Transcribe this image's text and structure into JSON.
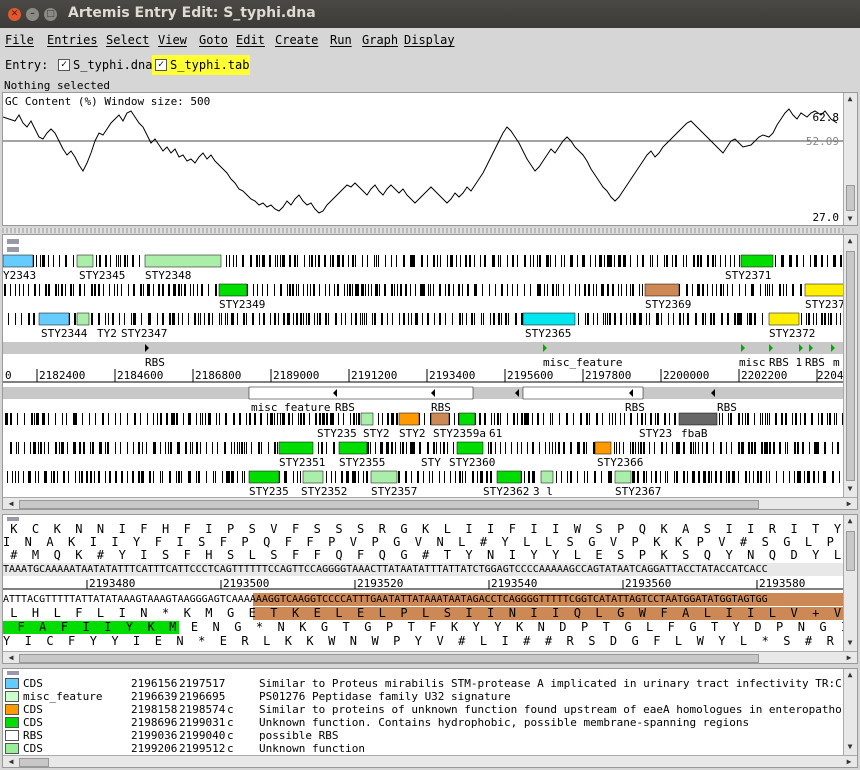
{
  "window": {
    "title": "Artemis Entry Edit: S_typhi.dna"
  },
  "menu": [
    "File",
    "Entries",
    "Select",
    "View",
    "Goto",
    "Edit",
    "Create",
    "Run",
    "Graph",
    "Display"
  ],
  "entries": {
    "label": "Entry:",
    "items": [
      {
        "name": "S_typhi.dna",
        "checked": true,
        "highlighted": false
      },
      {
        "name": "S_typhi.tab",
        "checked": true,
        "highlighted": true
      }
    ]
  },
  "status": {
    "selection": "Nothing selected"
  },
  "gc_plot": {
    "label": "GC Content (%)  Window size: 500",
    "max": "62.8",
    "avg": "52.09",
    "min": "27.0"
  },
  "feature_view": {
    "ticks": [
      "2182400",
      "2184600",
      "2186800",
      "2189000",
      "2191200",
      "2193400",
      "2195600",
      "2197800",
      "2200000",
      "2202200",
      "2204"
    ],
    "tick0": "0",
    "labels": {
      "f1": [
        "Y2343",
        "STY2345",
        "STY2348",
        "STY2371"
      ],
      "f2": [
        "STY2349",
        "STY2369",
        "STY237"
      ],
      "f3": [
        "STY2344",
        "TY2",
        "STY2347",
        "STY2365",
        "STY2372"
      ],
      "rbs_top": [
        "RBS",
        "misc_feature",
        "misc",
        "RBS 1",
        "RBS",
        "m"
      ],
      "rbs_bottom": [
        "misc_feature",
        "RBS",
        "RBS",
        "RBS",
        "RBS"
      ],
      "r1": [
        "STY235",
        "STY2",
        "STY2",
        "STY2359a",
        "61",
        "STY23",
        "fbaB"
      ],
      "r2": [
        "STY2351",
        "STY2355",
        "STY",
        "STY2360",
        "STY2366"
      ],
      "r3": [
        "STY235",
        "STY2352",
        "STY2357",
        "STY2362",
        "3 l",
        "STY2367"
      ]
    }
  },
  "sequence": {
    "f1": " K  C  K  N  N  I  F  H  F  I  P  S  V  F  S  S  S  R  G  K  L  I  I  F  I  I  W  S  P  Q  K  A  S  I  I  R  I  T  Y  I  T",
    "f2": "I  N  A  K  I  I  Y  F  I  S  F  P  Q  F  F  P  V  P  G  V  N  L  #  Y  L  L  S  G  V  P  K  K  P  V  #  S  G  L  P  I  P  S",
    "f3": " #  M  Q  K  #  Y  I  S  F  H  S  L  S  F  F  Q  F  Q  G  #  T  Y  N  I  Y  Y  L  E  S  P  K  S  Q  Y  N  Q  D  Y  L  Y  H  H",
    "fwd": "TAAATGCAAAAATAATATATTTCATTTCATTCCCTCAGTTTTTTCCAGTTCCAGGGGTAAACTTATAATATTTATTATCTGGAGTCCCCAAAAAGCCAGTATAATCAGGATTACCTATACCATCACC",
    "ticks": [
      "2193480",
      "2193500",
      "2193520",
      "2193540",
      "2193560",
      "2193580"
    ],
    "rev": "ATTTACGTTTTTATTATATAAAGTAAAGTAAGGGAGTCAAAAAAGGTCAAGGTCCCCATTTGAATATTATAAATAATAGACCTCAGGGGTTTTTCGGTCATATTAGTCCTAATGGATATGGTAGTGG",
    "r1": " L  H  L  F  L  I  N  *  K  M  G  E  T  K  E  L  E  L  P  L  S  I  I  N  I  I  Q  L  G  W  F  A  L  I  I  L  V  +  V  M  V",
    "r2": "  F  A  F  I  I  Y  K  M  E  N  G  *  N  K  G  T  G  P  T  F  K  Y  Y  K  N  D  P  T  G  L  F  G  T  Y  D  P  N  G  I  G  D  S",
    "r3": "Y  I  C  F  Y  Y  I  E  N  *  E  R  L  K  K  W  N  W  P  Y  V  #  L  I  #  #  R  S  D  G  F  L  W  Y  L  *  S  #  R  Y  W  *"
  },
  "feature_list": [
    {
      "color": "#66ccff",
      "key": "CDS",
      "start": "2196156",
      "end": "2197517",
      "strand": "",
      "note": "Similar to Proteus mirabilis STM-protease A implicated in urinary tract infectivity TR:C"
    },
    {
      "color": "#ccffcc",
      "key": "misc_feature",
      "start": "2196639",
      "end": "2196695",
      "strand": "",
      "note": "PS01276 Peptidase family U32 signature"
    },
    {
      "color": "#ff9900",
      "key": "CDS",
      "start": "2198158",
      "end": "2198574",
      "strand": "c",
      "note": "Similar to proteins of unknown function found upstream of eaeA homologues in enteropatho"
    },
    {
      "color": "#00dd00",
      "key": "CDS",
      "start": "2198696",
      "end": "2199031",
      "strand": "c",
      "note": "Unknown function. Contains hydrophobic, possible membrane-spanning regions"
    },
    {
      "color": "#ffffff",
      "key": "RBS",
      "start": "2199036",
      "end": "2199040",
      "strand": "c",
      "note": "possible RBS"
    },
    {
      "color": "#99ee99",
      "key": "CDS",
      "start": "2199206",
      "end": "2199512",
      "strand": "c",
      "note": "Unknown function"
    }
  ],
  "colors": {
    "titlebar": "#3c3b37",
    "close": "#e0582f",
    "highlight": "#ffff33",
    "frame_band": "#c8c8c8"
  }
}
